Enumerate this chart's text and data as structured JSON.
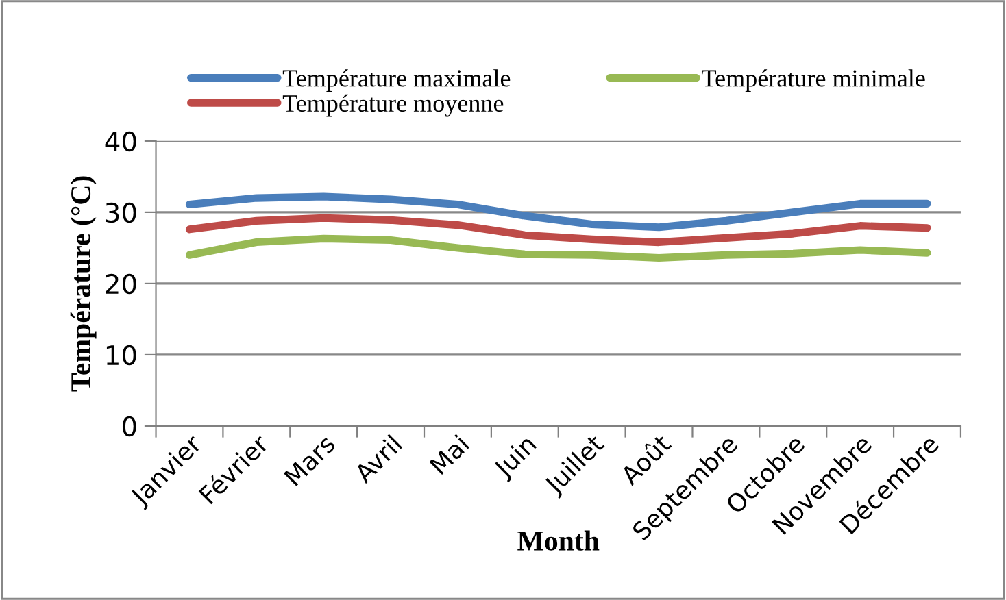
{
  "chart_data": {
    "type": "line",
    "xlabel": "Month",
    "ylabel": "Température (°C)",
    "categories": [
      "Janvier",
      "Février",
      "Mars",
      "Avril",
      "Mai",
      "Juin",
      "Juillet",
      "Août",
      "Septembre",
      "Octobre",
      "Novembre",
      "Décembre"
    ],
    "series": [
      {
        "name": "Température maximale",
        "color": "#4a7ebb",
        "values": [
          31.1,
          32.0,
          32.2,
          31.8,
          31.1,
          29.5,
          28.3,
          27.9,
          28.8,
          30.0,
          31.2,
          31.2
        ]
      },
      {
        "name": "Température moyenne",
        "color": "#be4b48",
        "values": [
          27.6,
          28.8,
          29.2,
          28.9,
          28.2,
          26.8,
          26.2,
          25.8,
          26.4,
          27.0,
          28.1,
          27.8
        ]
      },
      {
        "name": "Température minimale",
        "color": "#98b954",
        "values": [
          24.0,
          25.8,
          26.3,
          26.1,
          25.0,
          24.1,
          24.0,
          23.6,
          24.0,
          24.2,
          24.7,
          24.3
        ]
      }
    ],
    "ylim": [
      0,
      40
    ],
    "yticks": [
      0,
      10,
      20,
      30,
      40
    ],
    "grid": "y",
    "legend": "top",
    "marker": "none",
    "line_style": "solid"
  }
}
